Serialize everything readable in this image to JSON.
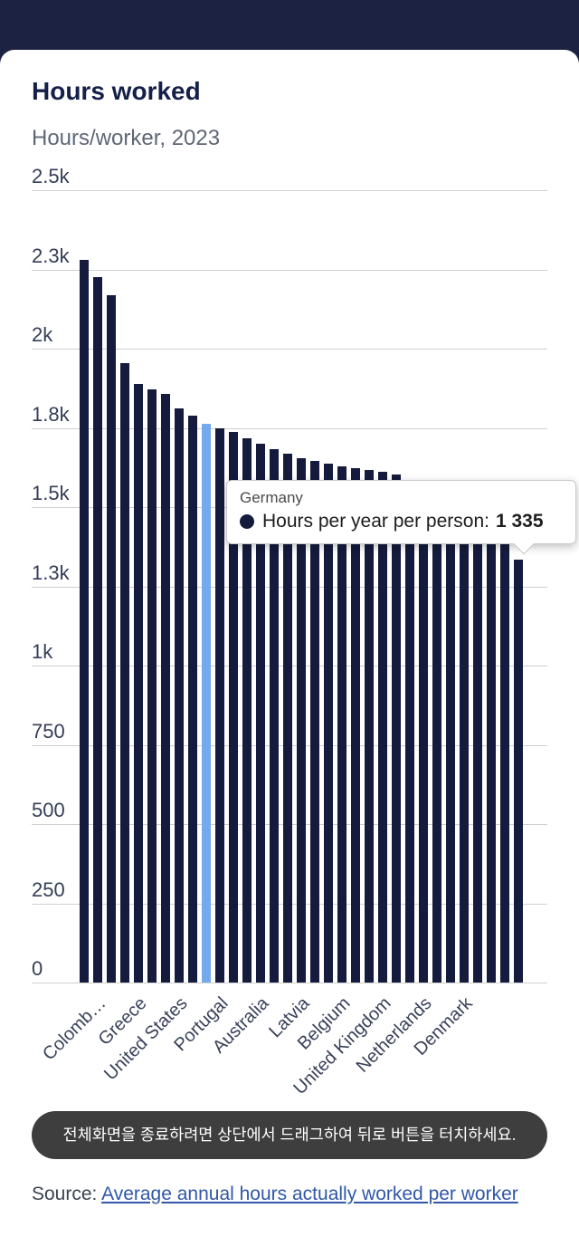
{
  "header": {
    "title": "Hours worked",
    "subtitle": "Hours/worker, 2023"
  },
  "chart_data": {
    "type": "bar",
    "title": "Hours worked",
    "subtitle": "Hours/worker, 2023",
    "ylabel": "Hours per year per person",
    "ylim": [
      0,
      2500
    ],
    "grid": true,
    "y_ticks": [
      {
        "label": "2.5k",
        "value": 2500
      },
      {
        "label": "2.3k",
        "value": 2250
      },
      {
        "label": "2k",
        "value": 2000
      },
      {
        "label": "1.8k",
        "value": 1750
      },
      {
        "label": "1.5k",
        "value": 1500
      },
      {
        "label": "1.3k",
        "value": 1250
      },
      {
        "label": "1k",
        "value": 1000
      },
      {
        "label": "750",
        "value": 750
      },
      {
        "label": "500",
        "value": 500
      },
      {
        "label": "250",
        "value": 250
      },
      {
        "label": "0",
        "value": 0
      }
    ],
    "values": [
      2280,
      2225,
      2170,
      1955,
      1890,
      1872,
      1858,
      1812,
      1790,
      1762,
      1748,
      1736,
      1718,
      1700,
      1684,
      1670,
      1655,
      1645,
      1637,
      1630,
      1624,
      1618,
      1611,
      1603,
      1585,
      1565,
      1545,
      1522,
      1496,
      1467,
      1432,
      1382,
      1335
    ],
    "highlight_index": 9,
    "x_tick_labels": [
      {
        "index": 0,
        "label": "Colomb…"
      },
      {
        "index": 3,
        "label": "Greece"
      },
      {
        "index": 6,
        "label": "United States"
      },
      {
        "index": 9,
        "label": "Portugal"
      },
      {
        "index": 12,
        "label": "Australia"
      },
      {
        "index": 15,
        "label": "Latvia"
      },
      {
        "index": 18,
        "label": "Belgium"
      },
      {
        "index": 21,
        "label": "United Kingdom"
      },
      {
        "index": 24,
        "label": "Netherlands"
      },
      {
        "index": 27,
        "label": "Denmark"
      }
    ],
    "bar_color": "#151b3d",
    "highlight_color": "#74aaec"
  },
  "tooltip": {
    "country": "Germany",
    "series_label": "Hours per year per person:",
    "value": "1 335"
  },
  "toast": {
    "text": "전체화면을 종료하려면 상단에서 드래그하여 뒤로 버튼을 터치하세요."
  },
  "source": {
    "prefix": "Source: ",
    "link_text": "Average annual hours actually worked per worker"
  },
  "colors": {
    "topbar": "#1c2242",
    "title": "#15204a",
    "link": "#3157a8"
  }
}
